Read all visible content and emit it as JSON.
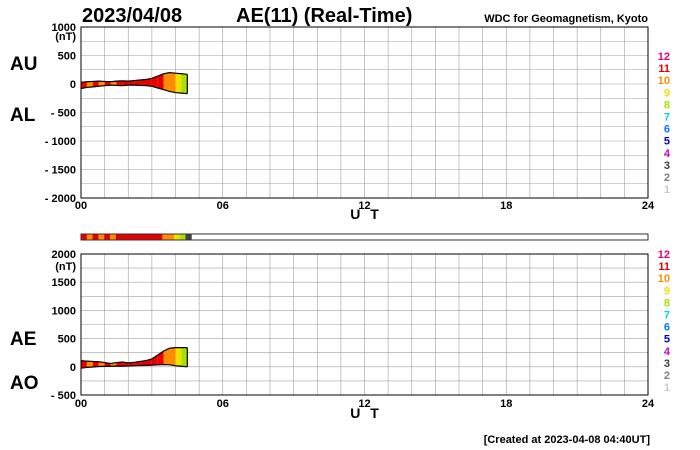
{
  "header": {
    "date": "2023/04/08",
    "title": "AE(11) (Real-Time)",
    "org": "WDC for Geomagnetism, Kyoto"
  },
  "footer": {
    "created": "[Created at 2023-04-08 04:40UT]"
  },
  "colors": {
    "level_12": "#e6007e",
    "level_11": "#e60000",
    "level_10": "#ff8c00",
    "level_9": "#f0e000",
    "level_8": "#a8e000",
    "level_7": "#00d8d8",
    "level_6": "#0078ff",
    "level_5": "#0000cc",
    "level_4": "#cc00cc",
    "level_3": "#404040",
    "level_2": "#808080",
    "level_1": "#c8c8c8"
  },
  "legend_levels": [
    "12",
    "11",
    "10",
    "9",
    "8",
    "7",
    "6",
    "5",
    "4",
    "3",
    "2",
    "1"
  ],
  "chart_data": [
    {
      "type": "area",
      "label_top": "AU",
      "label_bottom": "AL",
      "unit": "(nT)",
      "ylim": [
        -2000,
        1000
      ],
      "y_tick_labels": [
        "1000",
        "500",
        "0",
        "- 500",
        "- 1000",
        "- 1500",
        "- 2000"
      ],
      "y_tick_values": [
        1000,
        500,
        0,
        -500,
        -1000,
        -1500,
        -2000
      ],
      "xlim": [
        0,
        24
      ],
      "x_tick_labels": [
        "00",
        "06",
        "12",
        "18",
        "24"
      ],
      "x_tick_values": [
        0,
        6,
        12,
        18,
        24
      ],
      "xlabel": "U T",
      "grid": true,
      "x_hours": [
        0,
        0.25,
        0.5,
        0.75,
        1.0,
        1.25,
        1.5,
        1.75,
        2.0,
        2.25,
        2.5,
        2.75,
        3.0,
        3.25,
        3.5,
        3.75,
        4.0,
        4.25,
        4.5
      ],
      "series": [
        {
          "name": "AU",
          "values": [
            30,
            40,
            45,
            50,
            45,
            40,
            50,
            55,
            50,
            60,
            70,
            80,
            100,
            140,
            180,
            200,
            190,
            180,
            170
          ]
        },
        {
          "name": "AL",
          "values": [
            -80,
            -60,
            -50,
            -40,
            -30,
            -20,
            -25,
            -30,
            -20,
            -20,
            -25,
            -30,
            -40,
            -70,
            -100,
            -130,
            -150,
            -160,
            -170
          ]
        }
      ]
    },
    {
      "type": "area",
      "label_top": "AE",
      "label_bottom": "AO",
      "unit": "(nT)",
      "ylim": [
        -500,
        2000
      ],
      "y_tick_labels": [
        "2000",
        "1500",
        "1000",
        "500",
        "0",
        "- 500"
      ],
      "y_tick_values": [
        2000,
        1500,
        1000,
        500,
        0,
        -500
      ],
      "xlim": [
        0,
        24
      ],
      "x_tick_labels": [
        "00",
        "06",
        "12",
        "18",
        "24"
      ],
      "x_tick_values": [
        0,
        6,
        12,
        18,
        24
      ],
      "xlabel": "U T",
      "grid": true,
      "x_hours": [
        0,
        0.25,
        0.5,
        0.75,
        1.0,
        1.25,
        1.5,
        1.75,
        2.0,
        2.25,
        2.5,
        2.75,
        3.0,
        3.25,
        3.5,
        3.75,
        4.0,
        4.25,
        4.5
      ],
      "series": [
        {
          "name": "AE",
          "values": [
            110,
            100,
            95,
            90,
            75,
            60,
            75,
            85,
            70,
            80,
            95,
            110,
            140,
            210,
            280,
            330,
            340,
            340,
            340
          ]
        },
        {
          "name": "AO",
          "values": [
            -25,
            -10,
            -3,
            5,
            8,
            10,
            12,
            12,
            15,
            20,
            22,
            25,
            30,
            35,
            40,
            35,
            20,
            10,
            0
          ]
        }
      ]
    }
  ],
  "activity_bar": {
    "hours": 4.67,
    "segments": [
      "level_11",
      "level_10",
      "level_11",
      "level_10",
      "level_11",
      "level_10",
      "level_11",
      "level_11",
      "level_11",
      "level_11",
      "level_11",
      "level_11",
      "level_11",
      "level_11",
      "level_10",
      "level_10",
      "level_9",
      "level_8",
      "level_3"
    ]
  }
}
